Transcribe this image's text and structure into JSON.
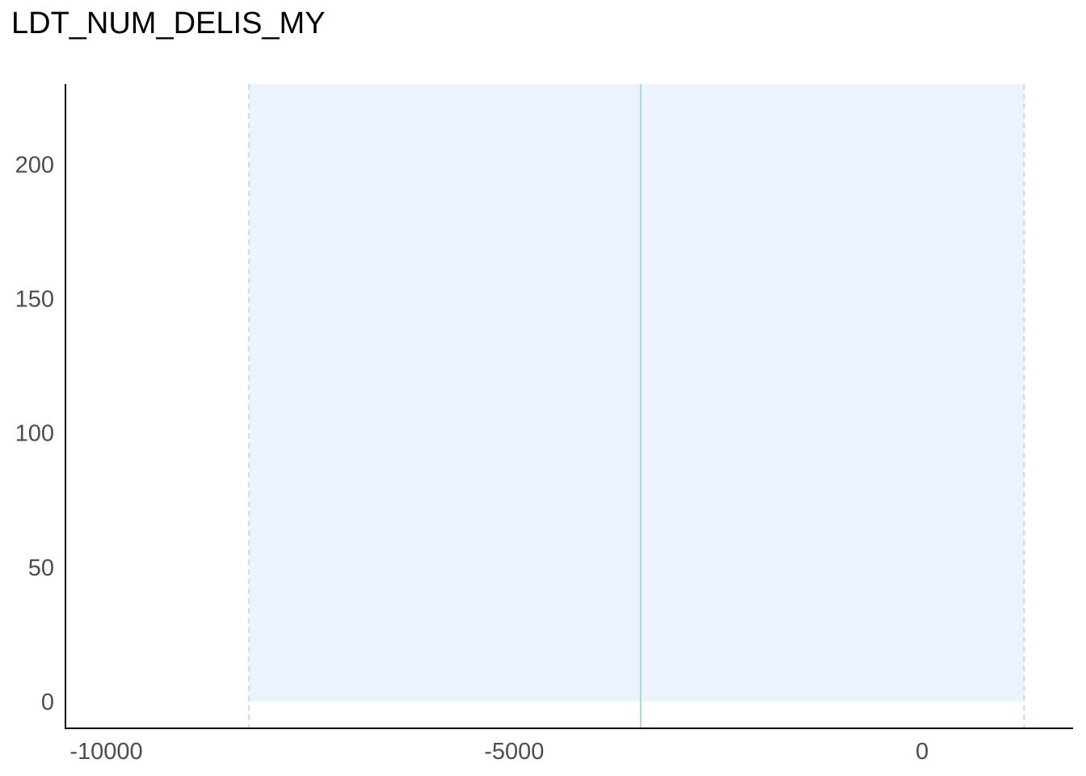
{
  "chart_data": {
    "type": "area",
    "title": "LDT_NUM_DELIS_MY",
    "xlabel": "",
    "ylabel": "",
    "xlim": [
      -10500,
      1850
    ],
    "ylim": [
      -10,
      230
    ],
    "x_ticks": [
      -10000,
      -5000,
      0
    ],
    "x_tick_labels": [
      "-10000",
      "-5000",
      "0"
    ],
    "y_ticks": [
      0,
      50,
      100,
      150,
      200
    ],
    "y_tick_labels": [
      "0",
      "50",
      "100",
      "150",
      "200"
    ],
    "shaded_interval": {
      "x_start": -8250,
      "x_end": 1250,
      "y_start": 0
    },
    "vertical_lines": [
      {
        "x": -8250,
        "style": "dashed"
      },
      {
        "x": -3450,
        "style": "solid"
      },
      {
        "x": 1250,
        "style": "dashed"
      }
    ],
    "grid": false,
    "colors": {
      "band_fill": "#ebf4fc",
      "center_line": "#a9d4ef",
      "bound_line": "#c5ddef",
      "axis": "#000000",
      "tick_text": "#4d4d4d"
    }
  }
}
